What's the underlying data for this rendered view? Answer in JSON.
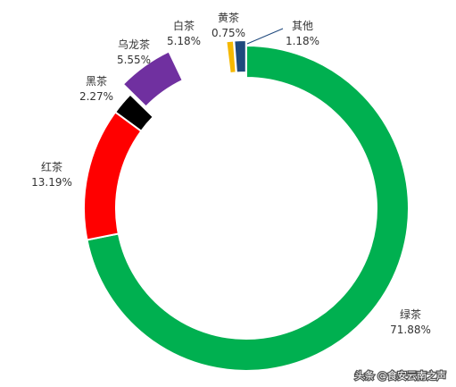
{
  "chart_data": {
    "type": "pie",
    "variant": "donut",
    "categories": [
      "绿茶",
      "红茶",
      "黑茶",
      "乌龙茶",
      "白茶",
      "黄茶",
      "其他"
    ],
    "values": [
      71.88,
      13.19,
      2.27,
      5.55,
      5.18,
      0.75,
      1.18
    ],
    "value_labels": [
      "71.88%",
      "13.19%",
      "2.27%",
      "5.55%",
      "5.18%",
      "0.75%",
      "1.18%"
    ],
    "colors": [
      "#00B050",
      "#FF0000",
      "#000000",
      "#7030A0",
      "#FFFFFF",
      "#F5B800",
      "#1F497D"
    ],
    "title": "",
    "legend": "none"
  },
  "watermark": {
    "text": "头条 @食安云南之声"
  }
}
